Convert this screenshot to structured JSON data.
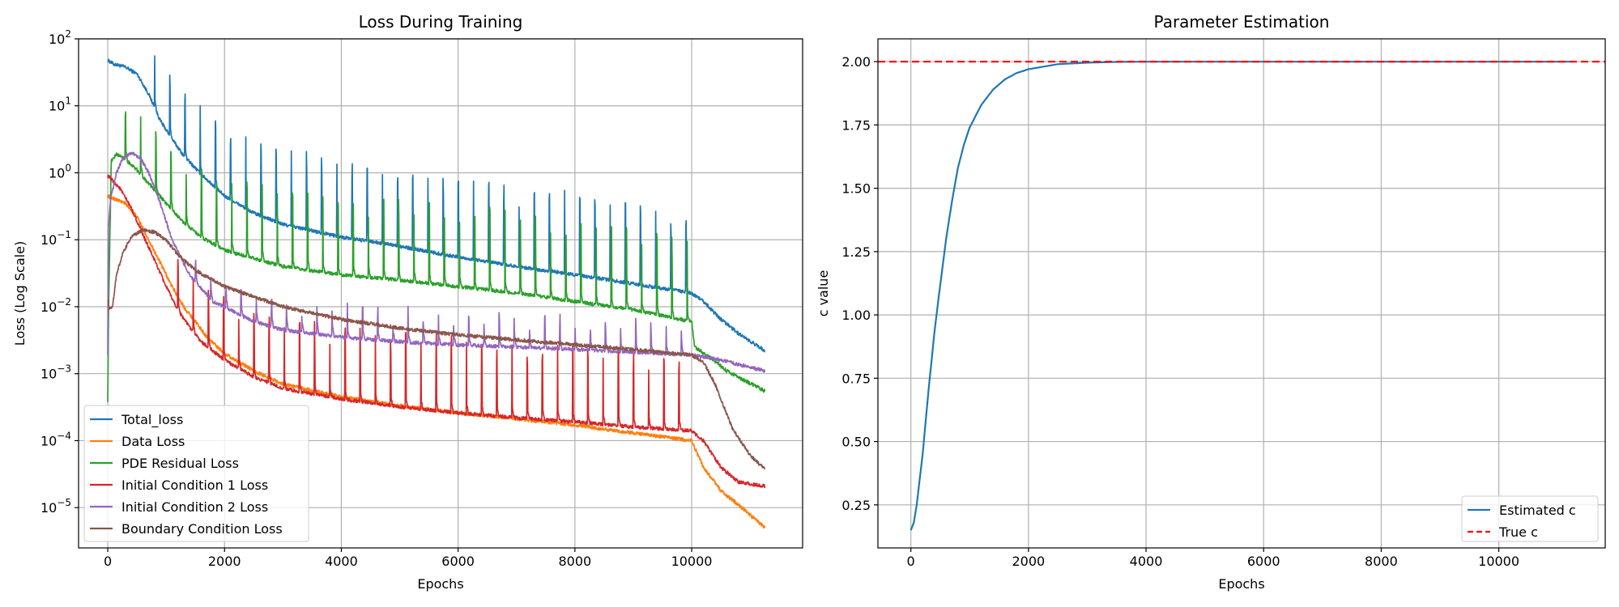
{
  "chart_data": [
    {
      "type": "line",
      "title": "Loss During Training",
      "xlabel": "Epochs",
      "ylabel": "Loss (Log Scale)",
      "yscale": "log",
      "xlim": [
        -500,
        11900
      ],
      "ylim": [
        2.5e-06,
        100
      ],
      "grid": true,
      "legend_position": "lower-left",
      "x_ticks": [
        {
          "value": 0,
          "label": "0"
        },
        {
          "value": 2000,
          "label": "2000"
        },
        {
          "value": 4000,
          "label": "4000"
        },
        {
          "value": 6000,
          "label": "6000"
        },
        {
          "value": 8000,
          "label": "8000"
        },
        {
          "value": 10000,
          "label": "10000"
        }
      ],
      "y_ticks": [
        {
          "value": 1e-05,
          "base": "10",
          "exp": "−5"
        },
        {
          "value": 0.0001,
          "base": "10",
          "exp": "−4"
        },
        {
          "value": 0.001,
          "base": "10",
          "exp": "−3"
        },
        {
          "value": 0.01,
          "base": "10",
          "exp": "−2"
        },
        {
          "value": 0.1,
          "base": "10",
          "exp": "−1"
        },
        {
          "value": 1,
          "base": "10",
          "exp": "0"
        },
        {
          "value": 10,
          "base": "10",
          "exp": "1"
        },
        {
          "value": 100,
          "base": "10",
          "exp": "2"
        }
      ],
      "series": [
        {
          "name": "Total_loss",
          "color": "#1f77b4",
          "spike_from": 800,
          "spike_period": 260,
          "spike_factor": 12,
          "spike_start_factor": 4,
          "x": [
            0,
            100,
            300,
            500,
            700,
            900,
            1100,
            1300,
            1600,
            2000,
            2500,
            3000,
            4000,
            5000,
            6000,
            7000,
            8000,
            9000,
            10000,
            10200,
            10500,
            10800,
            11250
          ],
          "y": [
            48,
            42,
            38,
            30,
            15,
            6,
            3.2,
            1.8,
            0.95,
            0.45,
            0.25,
            0.17,
            0.11,
            0.08,
            0.055,
            0.04,
            0.03,
            0.022,
            0.016,
            0.012,
            0.0065,
            0.004,
            0.0022
          ]
        },
        {
          "name": "Data Loss",
          "color": "#ff7f0e",
          "spike_from": 99999,
          "spike_period": 260,
          "spike_factor": 1,
          "spike_start_factor": 1,
          "x": [
            0,
            300,
            500,
            700,
            900,
            1100,
            1300,
            1500,
            1700,
            2000,
            2500,
            3000,
            4000,
            5000,
            6000,
            7000,
            8000,
            9000,
            10000,
            10200,
            10500,
            10800,
            11250
          ],
          "y": [
            0.45,
            0.35,
            0.22,
            0.1,
            0.045,
            0.02,
            0.01,
            0.006,
            0.0035,
            0.002,
            0.0011,
            0.0007,
            0.00045,
            0.00033,
            0.00026,
            0.00021,
            0.00017,
            0.00013,
            0.0001,
            4e-05,
            1.8e-05,
            1.1e-05,
            5e-06
          ]
        },
        {
          "name": "PDE Residual Loss",
          "color": "#2ca02c",
          "spike_from": 300,
          "spike_period": 260,
          "spike_factor": 12,
          "spike_start_factor": 3,
          "x": [
            0,
            15,
            60,
            150,
            300,
            500,
            700,
            1000,
            1300,
            1600,
            2000,
            3000,
            4000,
            5000,
            6000,
            7000,
            8000,
            9000,
            10000,
            10050,
            10300,
            10600,
            11250
          ],
          "y": [
            0.0004,
            0.01,
            1.5,
            1.9,
            1.6,
            1.1,
            0.7,
            0.35,
            0.18,
            0.11,
            0.07,
            0.04,
            0.03,
            0.025,
            0.02,
            0.016,
            0.012,
            0.009,
            0.006,
            0.0025,
            0.0018,
            0.0011,
            0.00055
          ]
        },
        {
          "name": "Initial Condition 1 Loss",
          "color": "#d62728",
          "spike_from": 1200,
          "spike_period": 260,
          "spike_factor": 10,
          "spike_start_factor": 3,
          "x": [
            0,
            200,
            400,
            600,
            800,
            1000,
            1200,
            1400,
            1600,
            2000,
            2500,
            3000,
            4000,
            5000,
            6000,
            7000,
            8000,
            9000,
            10000,
            10200,
            10500,
            10800,
            11250
          ],
          "y": [
            0.9,
            0.6,
            0.3,
            0.12,
            0.05,
            0.02,
            0.009,
            0.005,
            0.003,
            0.0016,
            0.0009,
            0.0006,
            0.00042,
            0.00032,
            0.00026,
            0.00022,
            0.00019,
            0.00016,
            0.00014,
            0.0001,
            4e-05,
            2.4e-05,
            2.1e-05
          ]
        },
        {
          "name": "Initial Condition 2 Loss",
          "color": "#9467bd",
          "spike_from": 1500,
          "spike_period": 260,
          "spike_factor": 2.5,
          "spike_start_factor": 1.5,
          "x": [
            0,
            10,
            50,
            150,
            250,
            400,
            550,
            700,
            900,
            1100,
            1400,
            1800,
            2500,
            3000,
            4000,
            5000,
            6000,
            7000,
            8000,
            9000,
            10000,
            10500,
            11250
          ],
          "y": [
            0.002,
            0.15,
            0.4,
            1.0,
            1.6,
            2.0,
            1.7,
            1.0,
            0.35,
            0.1,
            0.03,
            0.012,
            0.006,
            0.0045,
            0.0035,
            0.003,
            0.0027,
            0.0025,
            0.0023,
            0.0021,
            0.0019,
            0.0016,
            0.0011
          ]
        },
        {
          "name": "Boundary Condition Loss",
          "color": "#8c564b",
          "spike_from": 99999,
          "spike_period": 260,
          "spike_factor": 1,
          "spike_start_factor": 1,
          "x": [
            0,
            30,
            80,
            150,
            250,
            400,
            600,
            800,
            1000,
            1200,
            1500,
            2000,
            3000,
            4000,
            5000,
            6000,
            7000,
            8000,
            9000,
            10000,
            10200,
            10400,
            10700,
            11000,
            11250
          ],
          "y": [
            0.013,
            0.009,
            0.01,
            0.03,
            0.06,
            0.11,
            0.14,
            0.13,
            0.1,
            0.06,
            0.035,
            0.02,
            0.01,
            0.0065,
            0.0048,
            0.0038,
            0.0032,
            0.0027,
            0.0023,
            0.0019,
            0.0015,
            0.0007,
            0.00015,
            6e-05,
            3.8e-05
          ]
        }
      ]
    },
    {
      "type": "line",
      "title": "Parameter Estimation",
      "xlabel": "Epochs",
      "ylabel": "c value",
      "xlim": [
        -560,
        11810
      ],
      "ylim": [
        0.08,
        2.09
      ],
      "grid": true,
      "legend_position": "lower-right",
      "x_ticks": [
        {
          "value": 0,
          "label": "0"
        },
        {
          "value": 2000,
          "label": "2000"
        },
        {
          "value": 4000,
          "label": "4000"
        },
        {
          "value": 6000,
          "label": "6000"
        },
        {
          "value": 8000,
          "label": "8000"
        },
        {
          "value": 10000,
          "label": "10000"
        }
      ],
      "y_ticks": [
        {
          "value": 0.25,
          "label": "0.25"
        },
        {
          "value": 0.5,
          "label": "0.50"
        },
        {
          "value": 0.75,
          "label": "0.75"
        },
        {
          "value": 1.0,
          "label": "1.00"
        },
        {
          "value": 1.25,
          "label": "1.25"
        },
        {
          "value": 1.5,
          "label": "1.50"
        },
        {
          "value": 1.75,
          "label": "1.75"
        },
        {
          "value": 2.0,
          "label": "2.00"
        }
      ],
      "series": [
        {
          "name": "Estimated c",
          "color": "#1f77b4",
          "dash": false,
          "x": [
            0,
            50,
            100,
            200,
            300,
            400,
            500,
            600,
            700,
            800,
            900,
            1000,
            1200,
            1400,
            1600,
            1800,
            2000,
            2500,
            3000,
            3500,
            4000,
            6000,
            8000,
            10000,
            11250
          ],
          "y": [
            0.15,
            0.18,
            0.25,
            0.45,
            0.7,
            0.93,
            1.12,
            1.3,
            1.45,
            1.58,
            1.67,
            1.74,
            1.83,
            1.89,
            1.93,
            1.955,
            1.97,
            1.99,
            1.996,
            1.999,
            2.0,
            2.0,
            2.0,
            2.0,
            2.0
          ]
        },
        {
          "name": "True c",
          "color": "#ff0000",
          "dash": true,
          "hline": 2.0,
          "x": [],
          "y": []
        }
      ]
    }
  ]
}
